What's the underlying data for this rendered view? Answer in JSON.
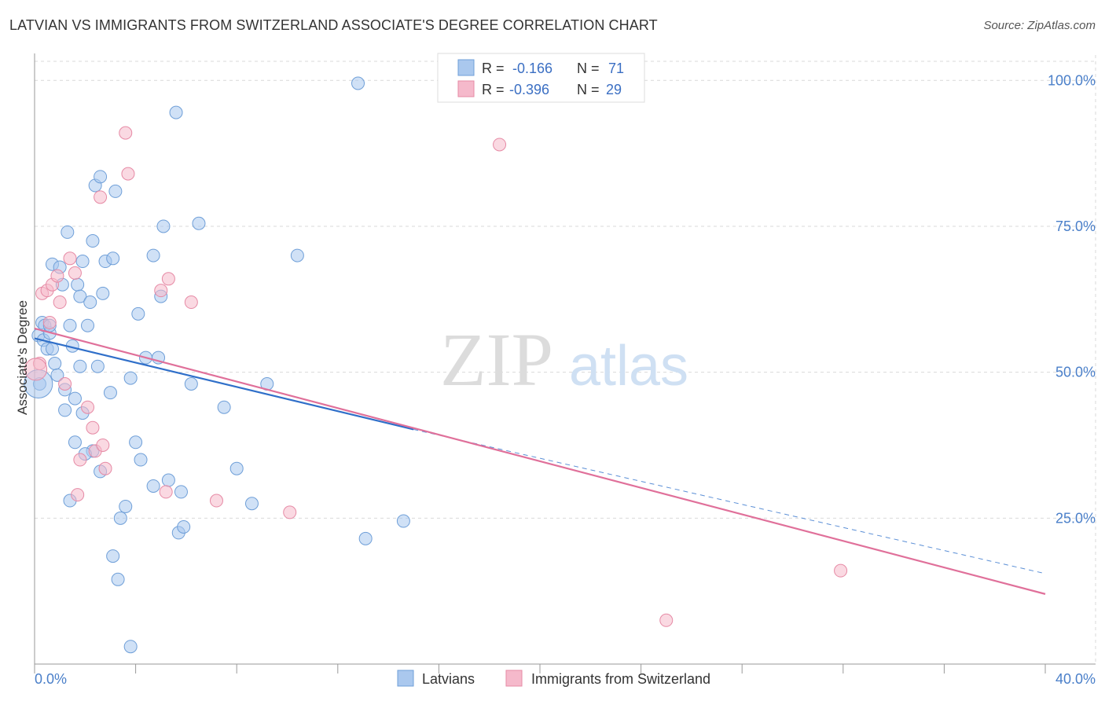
{
  "title": "LATVIAN VS IMMIGRANTS FROM SWITZERLAND ASSOCIATE'S DEGREE CORRELATION CHART",
  "source": "Source: ZipAtlas.com",
  "watermark": {
    "zip": "ZIP",
    "atlas": "atlas"
  },
  "chart_data": {
    "type": "scatter",
    "ylabel": "Associate's Degree",
    "xlim": [
      0,
      40
    ],
    "ylim": [
      0,
      103
    ],
    "x_tick_labels": [
      "0.0%",
      "40.0%"
    ],
    "y_ticks": [
      {
        "value": 25,
        "label": "25.0%"
      },
      {
        "value": 50,
        "label": "50.0%"
      },
      {
        "value": 75,
        "label": "75.0%"
      },
      {
        "value": 100,
        "label": "100.0%"
      }
    ],
    "grid": true,
    "stats_legend": [
      {
        "r_label": "R =",
        "r_value": "-0.166",
        "n_label": "N =",
        "n_value": "71",
        "color": "#6f9fd8"
      },
      {
        "r_label": "R =",
        "r_value": "-0.396",
        "n_label": "N =",
        "n_value": "29",
        "color": "#e68aa5"
      }
    ],
    "series": [
      {
        "name": "Latvians",
        "color": "#6f9fd8",
        "fill": "#aac8ee",
        "trend": {
          "x0": 0,
          "y0": 55.8,
          "x1": 15,
          "y1": 40.2,
          "dash_to_x": 40,
          "dash_to_y": 15.5
        },
        "points": [
          [
            0.15,
            56.3
          ],
          [
            0.2,
            48.0
          ],
          [
            0.3,
            58.5
          ],
          [
            0.35,
            55.5
          ],
          [
            0.4,
            58.0
          ],
          [
            0.5,
            54.0
          ],
          [
            0.6,
            56.7
          ],
          [
            0.7,
            68.5
          ],
          [
            0.7,
            54.0
          ],
          [
            0.8,
            51.5
          ],
          [
            0.9,
            49.5
          ],
          [
            1.0,
            68.0
          ],
          [
            1.1,
            65.0
          ],
          [
            1.2,
            47.0
          ],
          [
            1.2,
            43.5
          ],
          [
            1.3,
            74.0
          ],
          [
            1.4,
            58.0
          ],
          [
            1.5,
            54.5
          ],
          [
            1.6,
            45.5
          ],
          [
            1.6,
            38.0
          ],
          [
            1.7,
            65.0
          ],
          [
            1.8,
            63.0
          ],
          [
            1.8,
            51.0
          ],
          [
            1.9,
            43.0
          ],
          [
            1.9,
            69.0
          ],
          [
            2.1,
            58.0
          ],
          [
            2.2,
            62.0
          ],
          [
            2.3,
            72.5
          ],
          [
            2.3,
            36.5
          ],
          [
            2.4,
            82.0
          ],
          [
            2.5,
            51.0
          ],
          [
            2.6,
            33.0
          ],
          [
            2.6,
            83.5
          ],
          [
            2.7,
            63.5
          ],
          [
            2.8,
            69.0
          ],
          [
            3.0,
            46.5
          ],
          [
            3.1,
            18.5
          ],
          [
            3.1,
            69.5
          ],
          [
            3.2,
            81.0
          ],
          [
            3.3,
            14.5
          ],
          [
            3.4,
            25.0
          ],
          [
            3.6,
            27.0
          ],
          [
            3.8,
            3.0
          ],
          [
            3.8,
            49.0
          ],
          [
            4.0,
            38.0
          ],
          [
            4.1,
            60.0
          ],
          [
            4.2,
            35.0
          ],
          [
            4.4,
            52.5
          ],
          [
            4.7,
            30.5
          ],
          [
            4.7,
            70.0
          ],
          [
            4.9,
            52.5
          ],
          [
            5.0,
            63.0
          ],
          [
            5.1,
            75.0
          ],
          [
            5.3,
            31.5
          ],
          [
            5.6,
            94.5
          ],
          [
            5.7,
            22.5
          ],
          [
            5.8,
            29.5
          ],
          [
            5.9,
            23.5
          ],
          [
            6.2,
            48.0
          ],
          [
            6.5,
            75.5
          ],
          [
            7.5,
            44.0
          ],
          [
            8.0,
            33.5
          ],
          [
            8.6,
            27.5
          ],
          [
            9.2,
            48.0
          ],
          [
            10.4,
            70.0
          ],
          [
            12.8,
            99.5
          ],
          [
            13.1,
            21.5
          ],
          [
            14.6,
            24.5
          ],
          [
            1.4,
            28.0
          ],
          [
            0.6,
            58.0
          ],
          [
            2.0,
            36.0
          ]
        ],
        "sizes": {
          "default": 8,
          "big": [
            [
              0.15,
              48.0,
              18
            ]
          ]
        }
      },
      {
        "name": "Immigrants from Switzerland",
        "color": "#e68aa5",
        "fill": "#f5b9cb",
        "trend": {
          "x0": 0,
          "y0": 57.5,
          "x1": 40,
          "y1": 12.0
        },
        "points": [
          [
            0.2,
            51.5
          ],
          [
            0.3,
            63.5
          ],
          [
            0.5,
            64.0
          ],
          [
            0.6,
            58.5
          ],
          [
            0.7,
            65.0
          ],
          [
            0.9,
            66.5
          ],
          [
            1.0,
            62.0
          ],
          [
            1.2,
            48.0
          ],
          [
            1.4,
            69.5
          ],
          [
            1.6,
            67.0
          ],
          [
            1.7,
            29.0
          ],
          [
            1.8,
            35.0
          ],
          [
            2.1,
            44.0
          ],
          [
            2.3,
            40.5
          ],
          [
            2.4,
            36.5
          ],
          [
            2.6,
            80.0
          ],
          [
            2.7,
            37.5
          ],
          [
            2.8,
            33.5
          ],
          [
            3.6,
            91.0
          ],
          [
            3.7,
            84.0
          ],
          [
            5.0,
            64.0
          ],
          [
            5.2,
            29.5
          ],
          [
            5.3,
            66.0
          ],
          [
            6.2,
            62.0
          ],
          [
            7.2,
            28.0
          ],
          [
            10.1,
            26.0
          ],
          [
            18.4,
            89.0
          ],
          [
            25.0,
            7.5
          ],
          [
            31.9,
            16.0
          ]
        ],
        "sizes": {
          "default": 8,
          "big": [
            [
              0.05,
              50.5,
              14
            ]
          ]
        }
      }
    ]
  },
  "legend": [
    {
      "label": "Latvians",
      "color": "#aac8ee",
      "stroke": "#6f9fd8"
    },
    {
      "label": "Immigrants from Switzerland",
      "color": "#f5b9cb",
      "stroke": "#e68aa5"
    }
  ]
}
